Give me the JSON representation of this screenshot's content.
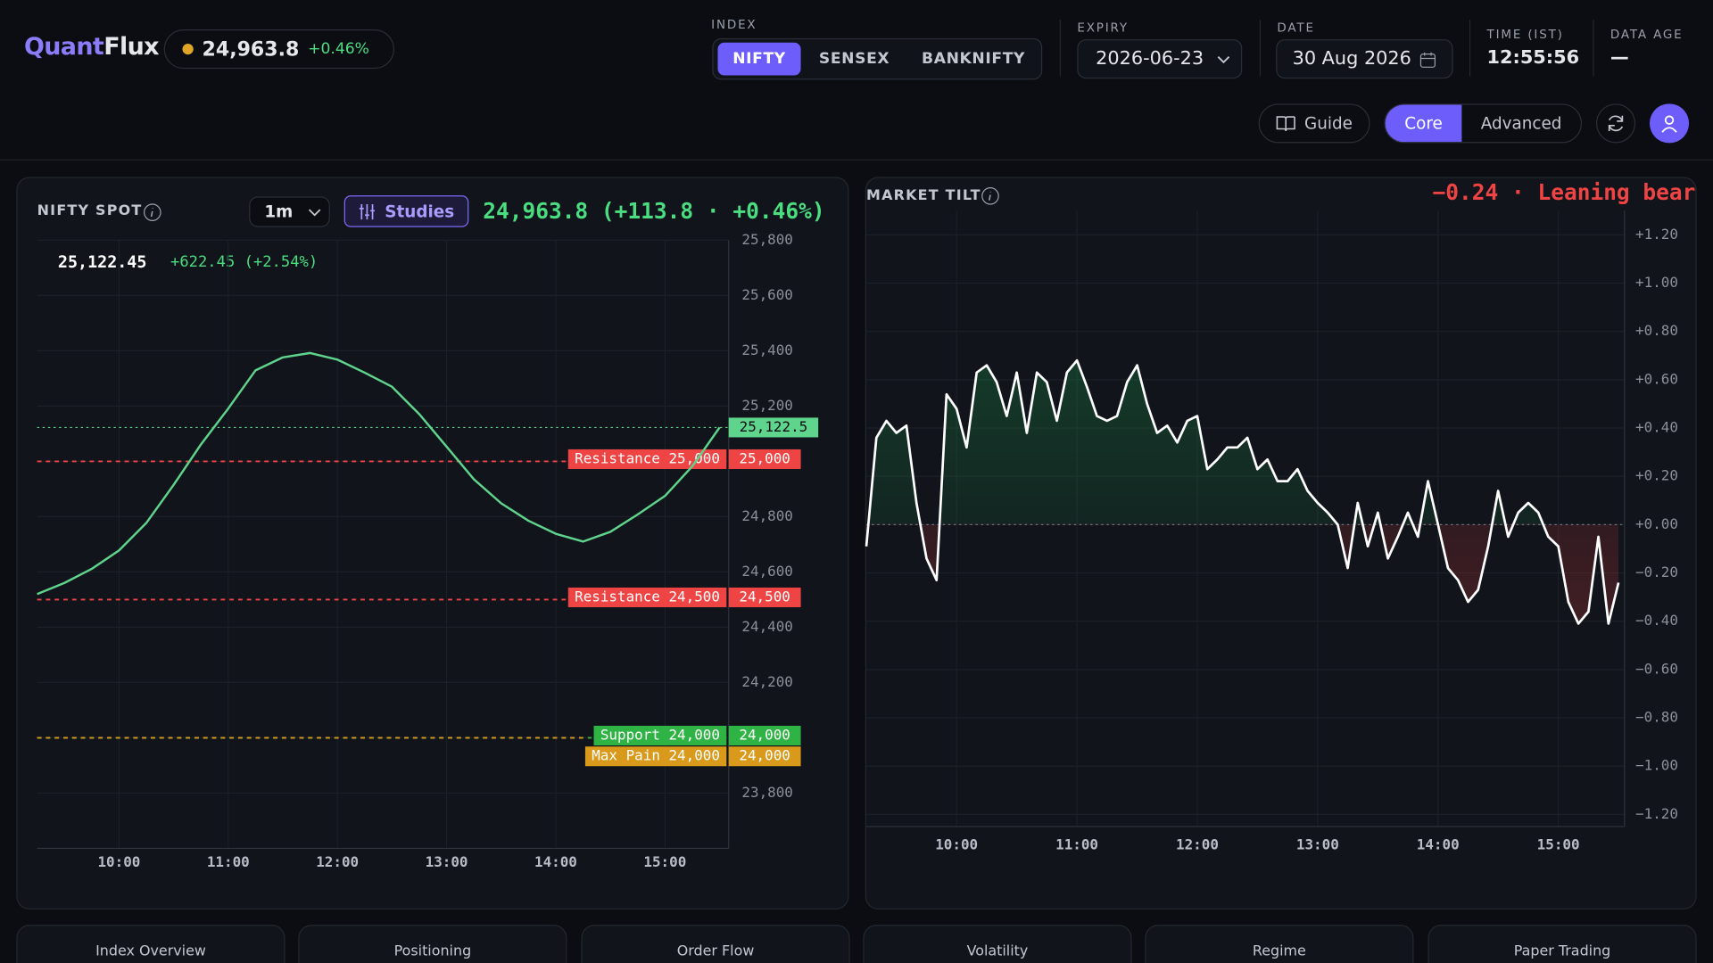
{
  "header": {
    "brand_prefix": "Quant",
    "brand_suffix": "Flux",
    "spot": "24,963.8",
    "spot_change": "+0.46%",
    "index_label": "INDEX",
    "index_options": [
      "NIFTY",
      "SENSEX",
      "BANKNIFTY"
    ],
    "expiry_label": "EXPIRY",
    "expiry": "2026-06-23",
    "date_label": "DATE",
    "date": "30 Aug 2026",
    "time_label": "TIME (IST)",
    "time": "12:55:56",
    "age_label": "DATA AGE",
    "age": "—",
    "guide": "Guide",
    "modes": [
      "Core",
      "Advanced"
    ]
  },
  "tabs": [
    "Index Overview",
    "Positioning",
    "Order Flow",
    "Volatility",
    "Regime",
    "Paper Trading"
  ],
  "chart_data": [
    {
      "type": "line",
      "title": "NIFTY SPOT",
      "interval": "1m",
      "studies": "Studies",
      "headline": "24,963.8 (+113.8 · +0.46%)",
      "readout": "25,122.45",
      "readout_change": "+622.45 (+2.54%)",
      "color": "#5fd48c",
      "x": [
        "09:15",
        "09:30",
        "09:45",
        "10:00",
        "10:15",
        "10:30",
        "10:45",
        "11:00",
        "11:15",
        "11:30",
        "11:45",
        "12:00",
        "12:15",
        "12:30",
        "12:45",
        "13:00",
        "13:15",
        "13:30",
        "13:45",
        "14:00",
        "14:15",
        "14:30",
        "14:45",
        "15:00",
        "15:15",
        "15:30"
      ],
      "values": [
        24520,
        24560,
        24611,
        24678,
        24777,
        24915,
        25061,
        25191,
        25329,
        25376,
        25392,
        25368,
        25321,
        25270,
        25171,
        25053,
        24935,
        24848,
        24785,
        24738,
        24710,
        24745,
        24808,
        24875,
        24982,
        25122.45
      ],
      "xlim": [
        "09:15",
        "15:35"
      ],
      "xticks": [
        "10:00",
        "11:00",
        "12:00",
        "13:00",
        "14:00",
        "15:00"
      ],
      "ylim": [
        23600,
        25800
      ],
      "yticks": [
        {
          "value": 23800,
          "label": "23,800"
        },
        {
          "value": 24000,
          "label": "24,000"
        },
        {
          "value": 24200,
          "label": "24,200"
        },
        {
          "value": 24400,
          "label": "24,400"
        },
        {
          "value": 24600,
          "label": "24,600"
        },
        {
          "value": 24800,
          "label": "24,800"
        },
        {
          "value": 25000,
          "label": "25,000"
        },
        {
          "value": 25200,
          "label": "25,200"
        },
        {
          "value": 25400,
          "label": "25,400"
        },
        {
          "value": 25600,
          "label": "25,600"
        },
        {
          "value": 25800,
          "label": "25,800"
        }
      ],
      "grid": true,
      "last": {
        "value": 25122.5,
        "label": "25,122.5",
        "color": "#5fd48c"
      },
      "levels": [
        {
          "name": "Resistance 25,000",
          "value": 25000,
          "label": "25,000",
          "color": "#ef4444"
        },
        {
          "name": "Resistance 24,500",
          "value": 24500,
          "label": "24,500",
          "color": "#ef4444"
        },
        {
          "name": "Support 24,000",
          "value": 24000,
          "label": "24,000",
          "color": "#2fb344"
        },
        {
          "name": "Max Pain 24,000",
          "value": 24000,
          "label": "24,000",
          "color": "#d99a1c"
        }
      ]
    },
    {
      "type": "line",
      "title": "MARKET TILT",
      "headline": "−0.24 · Leaning bear",
      "color": "#ffffff",
      "x": [
        "09:15",
        "09:20",
        "09:25",
        "09:30",
        "09:35",
        "09:40",
        "09:45",
        "09:50",
        "09:55",
        "10:00",
        "10:05",
        "10:10",
        "10:15",
        "10:20",
        "10:25",
        "10:30",
        "10:35",
        "10:40",
        "10:45",
        "10:50",
        "10:55",
        "11:00",
        "11:05",
        "11:10",
        "11:15",
        "11:20",
        "11:25",
        "11:30",
        "11:35",
        "11:40",
        "11:45",
        "11:50",
        "11:55",
        "12:00",
        "12:05",
        "12:10",
        "12:15",
        "12:20",
        "12:25",
        "12:30",
        "12:35",
        "12:40",
        "12:45",
        "12:50",
        "12:55",
        "13:00",
        "13:05",
        "13:10",
        "13:15",
        "13:20",
        "13:25",
        "13:30",
        "13:35",
        "13:40",
        "13:45",
        "13:50",
        "13:55",
        "14:00",
        "14:05",
        "14:10",
        "14:15",
        "14:20",
        "14:25",
        "14:30",
        "14:35",
        "14:40",
        "14:45",
        "14:50",
        "14:55",
        "15:00",
        "15:05",
        "15:10",
        "15:15",
        "15:20",
        "15:25",
        "15:30"
      ],
      "values": [
        -0.09,
        0.36,
        0.43,
        0.38,
        0.41,
        0.09,
        -0.14,
        -0.23,
        0.54,
        0.48,
        0.32,
        0.63,
        0.66,
        0.59,
        0.45,
        0.63,
        0.38,
        0.63,
        0.59,
        0.43,
        0.63,
        0.68,
        0.57,
        0.45,
        0.43,
        0.45,
        0.59,
        0.66,
        0.5,
        0.38,
        0.41,
        0.34,
        0.43,
        0.45,
        0.23,
        0.27,
        0.32,
        0.32,
        0.36,
        0.23,
        0.27,
        0.18,
        0.18,
        0.23,
        0.14,
        0.09,
        0.05,
        0,
        -0.18,
        0.09,
        -0.09,
        0.05,
        -0.14,
        -0.05,
        0.05,
        -0.05,
        0.18,
        0,
        -0.18,
        -0.23,
        -0.32,
        -0.27,
        -0.09,
        0.14,
        -0.05,
        0.05,
        0.09,
        0.05,
        -0.05,
        -0.09,
        -0.32,
        -0.41,
        -0.36,
        -0.05,
        -0.41,
        -0.24
      ],
      "xlim": [
        "09:15",
        "15:33"
      ],
      "xticks": [
        "10:00",
        "11:00",
        "12:00",
        "13:00",
        "14:00",
        "15:00"
      ],
      "ylim": [
        -1.25,
        1.3
      ],
      "yticks": [
        {
          "value": 1.2,
          "label": "+1.20"
        },
        {
          "value": 1,
          "label": "+1.00"
        },
        {
          "value": 0.8,
          "label": "+0.80"
        },
        {
          "value": 0.6,
          "label": "+0.60"
        },
        {
          "value": 0.4,
          "label": "+0.40"
        },
        {
          "value": 0.2,
          "label": "+0.20"
        },
        {
          "value": 0,
          "label": "+0.00"
        },
        {
          "value": -0.2,
          "label": "−0.20"
        },
        {
          "value": -0.4,
          "label": "−0.40"
        },
        {
          "value": -0.6,
          "label": "−0.60"
        },
        {
          "value": -0.8,
          "label": "−0.80"
        },
        {
          "value": -1,
          "label": "−1.00"
        },
        {
          "value": -1.2,
          "label": "−1.20"
        }
      ],
      "grid": true,
      "zero_line": true,
      "area": true
    }
  ]
}
